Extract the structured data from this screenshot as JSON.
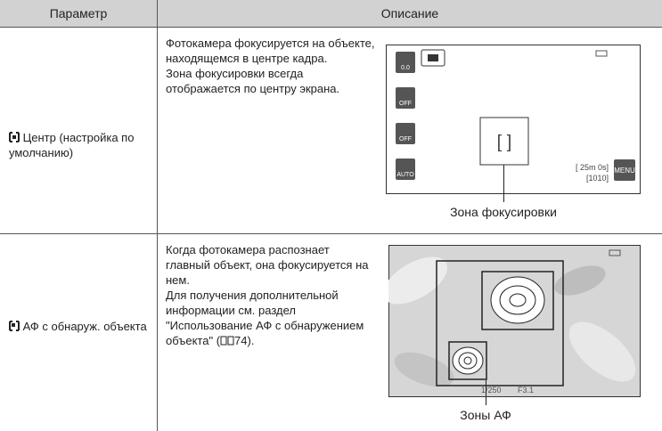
{
  "header": {
    "col1": "Параметр",
    "col2": "Описание"
  },
  "rows": [
    {
      "parameter": "Центр (настройка по умолчанию)",
      "description": [
        "Фотокамера фокусируется на объекте, находящемся в центре кадра.",
        "Зона фокусировки всегда отображается по центру экрана."
      ],
      "screen": {
        "exposure": "0.0",
        "macro": "OFF",
        "timer": "OFF",
        "flash": "AUTO",
        "time": "[ 25m 0s]",
        "shots": "[1010]",
        "menu": "MENU"
      },
      "caption": "Зона фокусировки"
    },
    {
      "parameter": "АФ с обнаруж. объекта",
      "description": [
        "Когда фотокамера распознает главный объект, она фокусируется на нем.",
        "Для получения дополнительной информации см. раздел \"Использование АФ с обнаружением объекта\" (",
        "74)."
      ],
      "screen": {
        "shutter": "1/250",
        "aperture": "F3.1"
      },
      "caption": "Зоны АФ"
    }
  ]
}
